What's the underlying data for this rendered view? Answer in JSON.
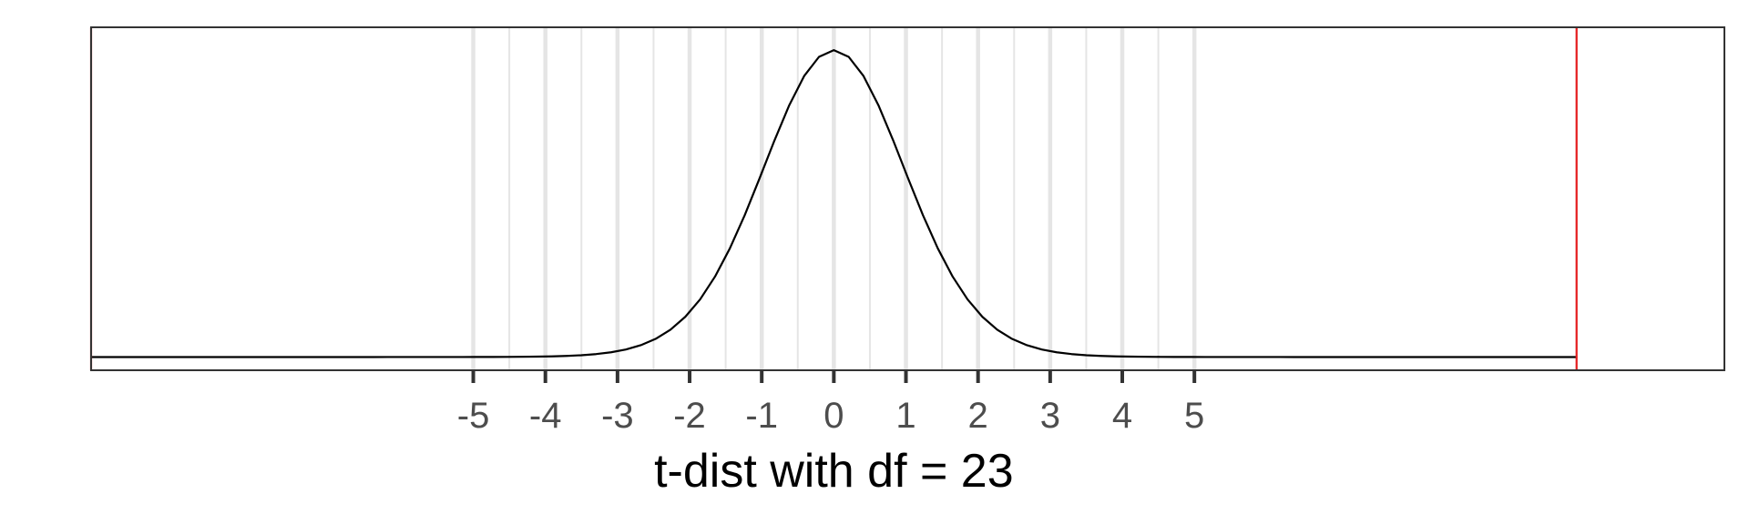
{
  "chart_data": {
    "type": "line",
    "title": "",
    "xlabel": "t-dist with df = 23",
    "ylabel": "",
    "df": 23,
    "xlim": [
      -10.3,
      12.35
    ],
    "ylim": [
      -0.017,
      0.424
    ],
    "x_ticks": [
      -5,
      -4,
      -3,
      -2,
      -1,
      0,
      1,
      2,
      3,
      4,
      5
    ],
    "x_tick_labels": [
      "-5",
      "-4",
      "-3",
      "-2",
      "-1",
      "0",
      "1",
      "2",
      "3",
      "4",
      "5"
    ],
    "minor_gridlines": [
      -4.5,
      -3.5,
      -2.5,
      -1.5,
      -0.5,
      0.5,
      1.5,
      2.5,
      3.5,
      4.5
    ],
    "grid": "vertical only",
    "curve": {
      "name": "",
      "x_range": [
        -10.3,
        10.3
      ],
      "color": "#000000"
    },
    "reference_lines": [
      {
        "x": -10.3,
        "color": "#e41a1c"
      },
      {
        "x": 10.3,
        "color": "#e41a1c"
      }
    ],
    "colors": {
      "curve": "#000000",
      "reference": "#e41a1c",
      "grid": "#e5e5e5",
      "panel_border": "#333333"
    }
  }
}
